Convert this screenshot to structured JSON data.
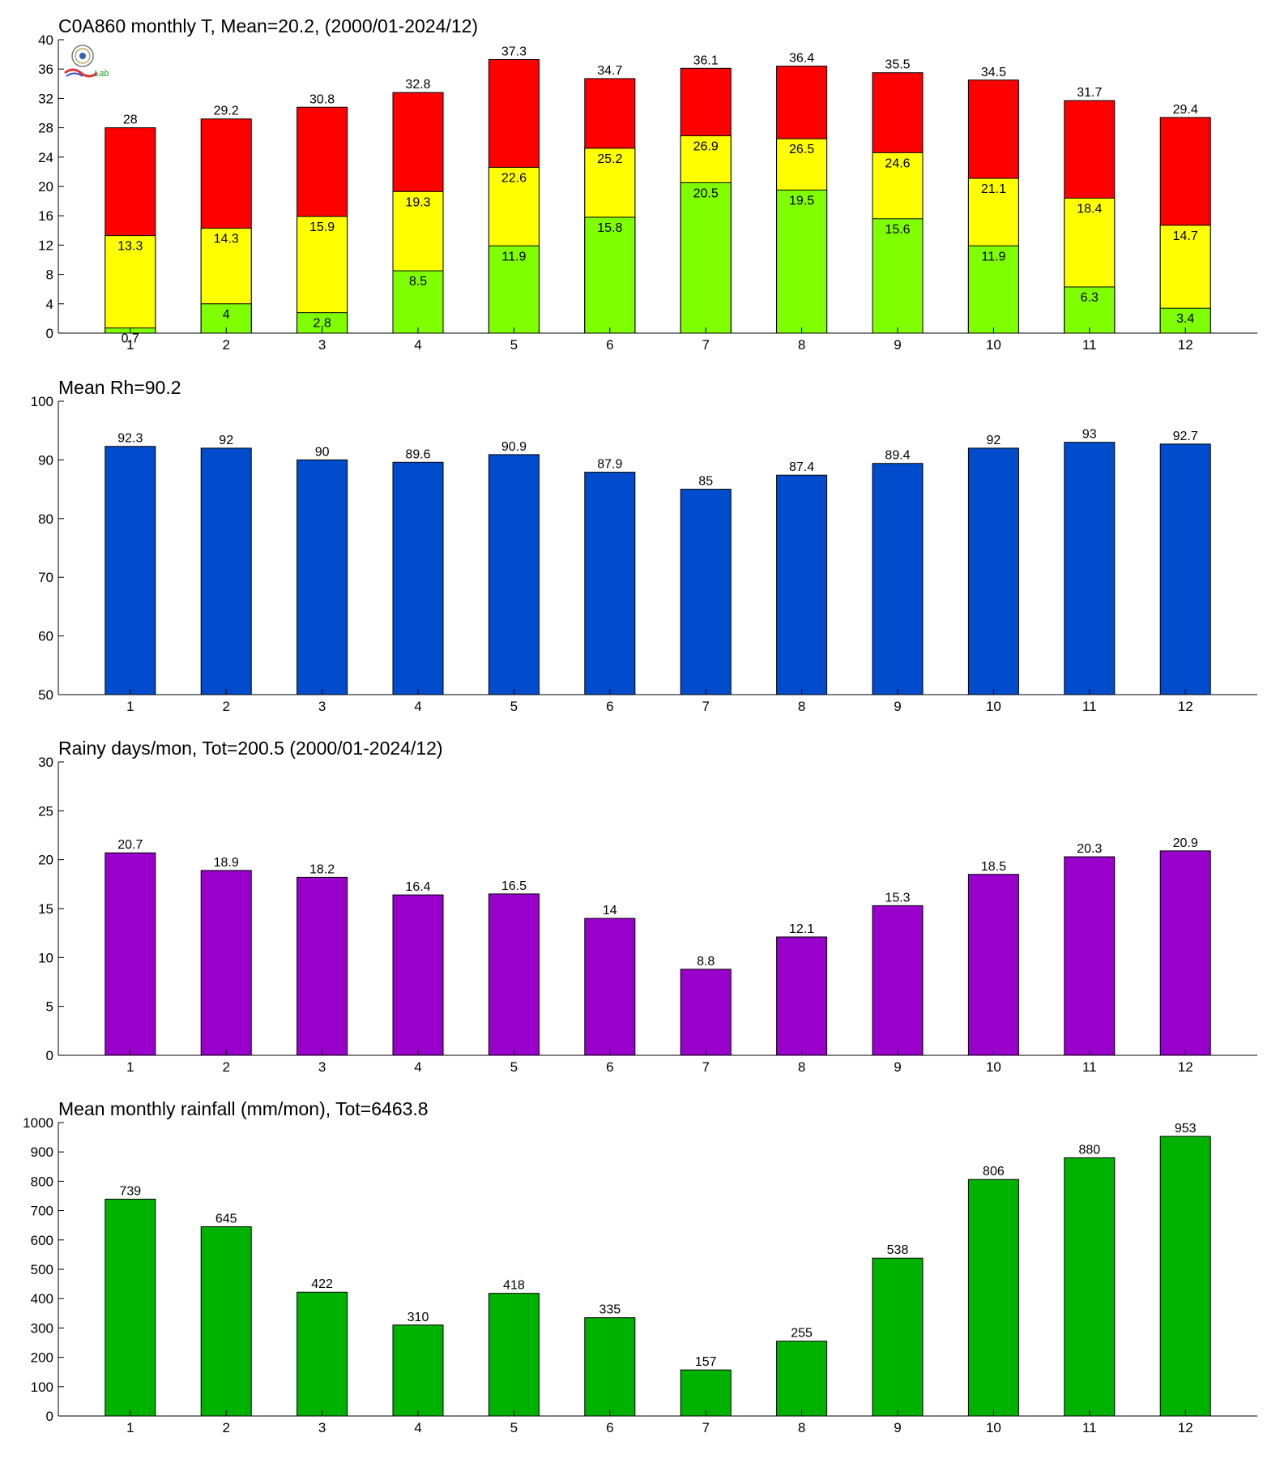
{
  "logo": {
    "text": "Lab"
  },
  "colors": {
    "t_max": "#ff0000",
    "t_mean": "#ffff00",
    "t_min": "#80ff00",
    "rh": "#004ccc",
    "rainy_days": "#9900cc",
    "rainfall": "#00b200"
  },
  "chart_data": [
    {
      "id": "temperature",
      "type": "bar",
      "title": "C0A860 monthly T, Mean=20.2, (2000/01-2024/12)",
      "categories": [
        "1",
        "2",
        "3",
        "4",
        "5",
        "6",
        "7",
        "8",
        "9",
        "10",
        "11",
        "12"
      ],
      "ylim": [
        0,
        40
      ],
      "yticks": [
        0,
        4,
        8,
        12,
        16,
        20,
        24,
        28,
        32,
        36,
        40
      ],
      "grid": false,
      "series": [
        {
          "values": [
            28,
            29.2,
            30.8,
            32.8,
            37.3,
            34.7,
            36.1,
            36.4,
            35.5,
            34.5,
            31.7,
            29.4
          ]
        },
        {
          "values": [
            13.3,
            14.3,
            15.9,
            19.3,
            22.6,
            25.2,
            26.9,
            26.5,
            24.6,
            21.1,
            18.4,
            14.7
          ]
        },
        {
          "values": [
            0.7,
            4,
            2.8,
            8.5,
            11.9,
            15.8,
            20.5,
            19.5,
            15.6,
            11.9,
            6.3,
            3.4
          ]
        }
      ]
    },
    {
      "id": "humidity",
      "type": "bar",
      "title": "Mean Rh=90.2",
      "categories": [
        "1",
        "2",
        "3",
        "4",
        "5",
        "6",
        "7",
        "8",
        "9",
        "10",
        "11",
        "12"
      ],
      "ylim": [
        50,
        100
      ],
      "yticks": [
        50,
        60,
        70,
        80,
        90,
        100
      ],
      "grid": false,
      "values": [
        92.3,
        92,
        90,
        89.6,
        90.9,
        87.9,
        85,
        87.4,
        89.4,
        92,
        93,
        92.7
      ]
    },
    {
      "id": "rainy_days",
      "type": "bar",
      "title": "Rainy days/mon, Tot=200.5 (2000/01-2024/12)",
      "categories": [
        "1",
        "2",
        "3",
        "4",
        "5",
        "6",
        "7",
        "8",
        "9",
        "10",
        "11",
        "12"
      ],
      "ylim": [
        0,
        30
      ],
      "yticks": [
        0,
        5,
        10,
        15,
        20,
        25,
        30
      ],
      "grid": false,
      "values": [
        20.7,
        18.9,
        18.2,
        16.4,
        16.5,
        14,
        8.8,
        12.1,
        15.3,
        18.5,
        20.3,
        20.9
      ]
    },
    {
      "id": "rainfall",
      "type": "bar",
      "title": "Mean monthly rainfall (mm/mon), Tot=6463.8",
      "categories": [
        "1",
        "2",
        "3",
        "4",
        "5",
        "6",
        "7",
        "8",
        "9",
        "10",
        "11",
        "12"
      ],
      "ylim": [
        0,
        1000
      ],
      "yticks": [
        0,
        100,
        200,
        300,
        400,
        500,
        600,
        700,
        800,
        900,
        1000
      ],
      "grid": false,
      "values": [
        739,
        645,
        422,
        310,
        418,
        335,
        157,
        255,
        538,
        806,
        880,
        953
      ]
    }
  ]
}
